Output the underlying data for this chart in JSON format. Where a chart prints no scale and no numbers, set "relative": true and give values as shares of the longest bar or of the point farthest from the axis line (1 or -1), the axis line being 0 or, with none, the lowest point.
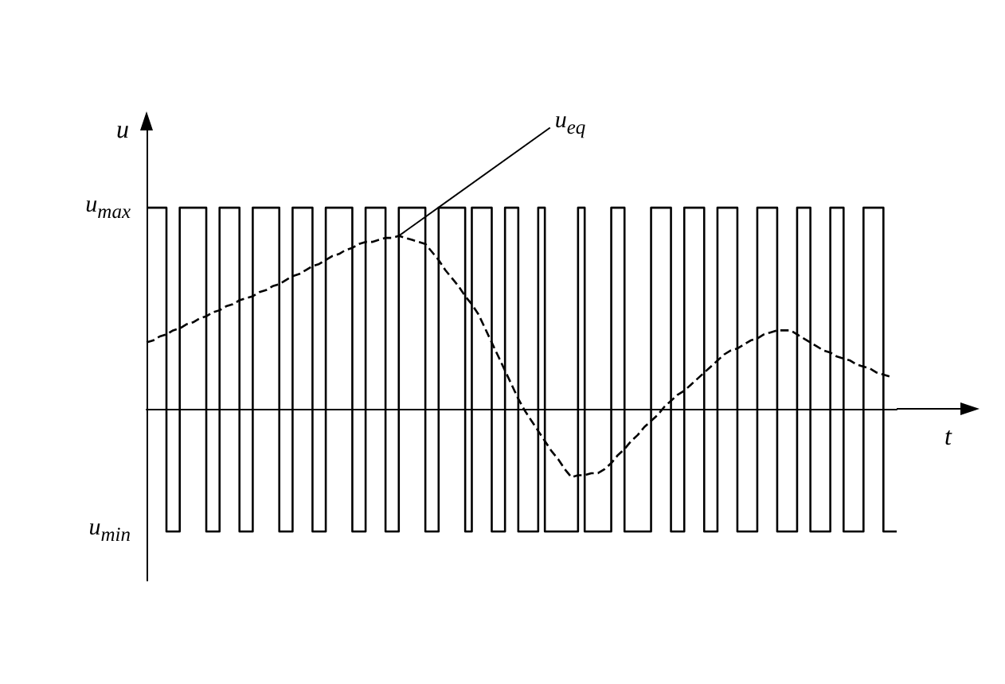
{
  "chart_data": {
    "type": "line",
    "relative": true,
    "ylabel": "u",
    "xlabel": "t",
    "categories": [
      null,
      null,
      null,
      null,
      null,
      null,
      null,
      null,
      null,
      null,
      null,
      null,
      null,
      null,
      null,
      null,
      null,
      null,
      null,
      null,
      null,
      null,
      null,
      null,
      null,
      null,
      null,
      null,
      null,
      null,
      null,
      null,
      null,
      null,
      null,
      null,
      null,
      null,
      null,
      null,
      null,
      null,
      null,
      null,
      null,
      null,
      null,
      null,
      null,
      null,
      null,
      null,
      null,
      null,
      null,
      null,
      null,
      null,
      null,
      null,
      null,
      null,
      null,
      null,
      null,
      null,
      null,
      null,
      null,
      null,
      null,
      null,
      null,
      null,
      null,
      null,
      null,
      null,
      null,
      null,
      null,
      null,
      null,
      null,
      null,
      null,
      null,
      null,
      null,
      null,
      null,
      null,
      null,
      null,
      null,
      null,
      null,
      null,
      null,
      null,
      null,
      null,
      null,
      null,
      null,
      null,
      null,
      null,
      null,
      null,
      null,
      null,
      null,
      null
    ],
    "series": [
      {
        "type": "step",
        "color": "#000000",
        "values": [
          1,
          1,
          1,
          -0.61,
          -0.61,
          1,
          1,
          1,
          1,
          -0.61,
          -0.61,
          1,
          1,
          1,
          -0.61,
          -0.61,
          1,
          1,
          1,
          1,
          -0.61,
          -0.61,
          1,
          1,
          1,
          -0.61,
          -0.61,
          1,
          1,
          1,
          1,
          -0.61,
          -0.61,
          1,
          1,
          1,
          -0.61,
          -0.61,
          1,
          1,
          1,
          1,
          -0.61,
          -0.61,
          1,
          1,
          1,
          1,
          -0.61,
          1,
          1,
          1,
          -0.61,
          -0.61,
          1,
          1,
          -0.61,
          -0.61,
          -0.61,
          1,
          -0.61,
          -0.61,
          -0.61,
          -0.61,
          -0.61,
          1,
          -0.61,
          -0.61,
          -0.61,
          -0.61,
          1,
          1,
          -0.61,
          -0.61,
          -0.61,
          -0.61,
          1,
          1,
          1,
          -0.61,
          -0.61,
          1,
          1,
          1,
          -0.61,
          -0.61,
          1,
          1,
          1,
          -0.61,
          -0.61,
          -0.61,
          1,
          1,
          1,
          -0.61,
          -0.61,
          -0.61,
          1,
          1,
          -0.61,
          -0.61,
          -0.61,
          1,
          1,
          -0.61,
          -0.61,
          -0.61,
          1,
          1,
          1,
          -0.61,
          -0.61,
          -0.61
        ]
      },
      {
        "type": "line",
        "line_style": "dashed",
        "color": "#000000",
        "values": [
          0.33,
          0.34,
          0.36,
          0.37,
          0.39,
          0.4,
          0.42,
          0.43,
          0.45,
          0.46,
          0.48,
          0.49,
          0.51,
          0.52,
          0.54,
          0.55,
          0.56,
          0.58,
          0.59,
          0.61,
          0.62,
          0.64,
          0.66,
          0.67,
          0.69,
          0.71,
          0.72,
          0.74,
          0.76,
          0.77,
          0.79,
          0.8,
          0.82,
          0.83,
          0.83,
          0.84,
          0.85,
          0.85,
          0.86,
          0.85,
          0.84,
          0.83,
          0.82,
          0.78,
          0.74,
          0.69,
          0.65,
          0.61,
          0.56,
          0.52,
          0.47,
          0.4,
          0.33,
          0.26,
          0.19,
          0.12,
          0.05,
          -0.01,
          -0.06,
          -0.11,
          -0.16,
          -0.21,
          -0.25,
          -0.3,
          -0.34,
          -0.33,
          -0.33,
          -0.32,
          -0.32,
          -0.3,
          -0.27,
          -0.23,
          -0.2,
          -0.16,
          -0.13,
          -0.09,
          -0.06,
          -0.03,
          0.01,
          0.04,
          0.07,
          0.09,
          0.12,
          0.15,
          0.18,
          0.21,
          0.24,
          0.27,
          0.29,
          0.3,
          0.32,
          0.34,
          0.35,
          0.37,
          0.38,
          0.39,
          0.39,
          0.39,
          0.37,
          0.35,
          0.33,
          0.31,
          0.29,
          0.28,
          0.26,
          0.25,
          0.24,
          0.22,
          0.21,
          0.2,
          0.18,
          0.17,
          0.16,
          null
        ]
      }
    ],
    "annotations": [
      "u$_{max}$",
      "u$_{min}$",
      "u$_{eq}$"
    ]
  }
}
